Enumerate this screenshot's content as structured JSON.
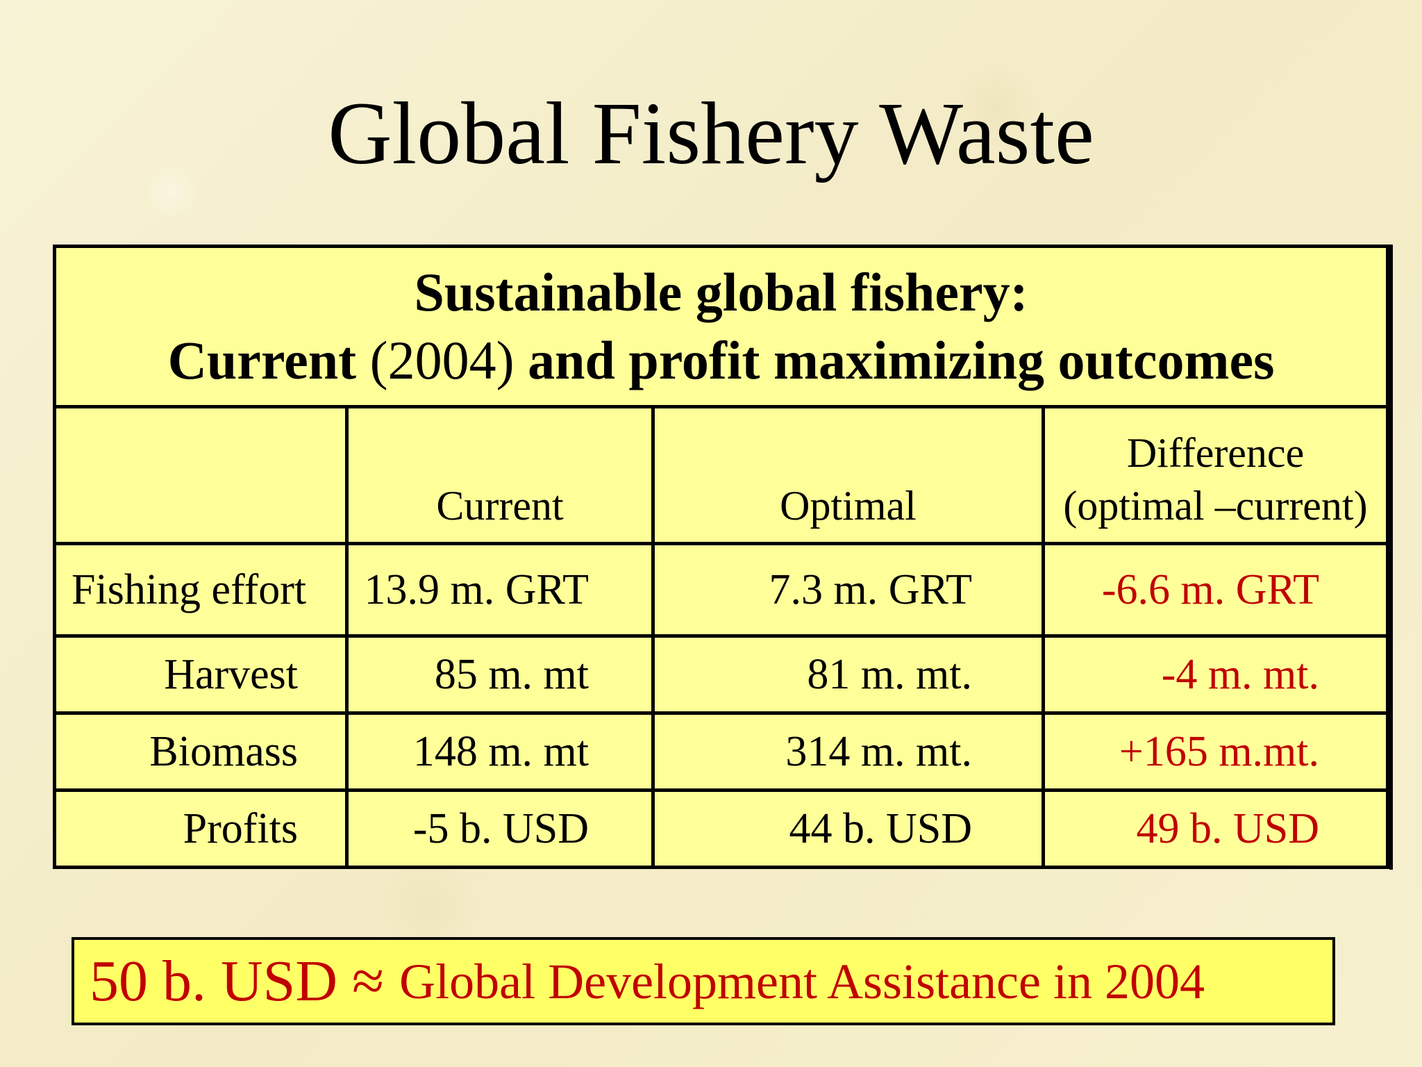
{
  "slide": {
    "title": "Global Fishery Waste"
  },
  "table": {
    "heading_line1": "Sustainable global fishery:",
    "heading_line2_a": "Current",
    "heading_line2_year": "(2004)",
    "heading_line2_b": "and profit maximizing outcomes",
    "columns": {
      "current": "Current",
      "optimal": "Optimal",
      "difference_line1": "Difference",
      "difference_line2": "(optimal –current)"
    },
    "rows": [
      {
        "label": "Fishing effort",
        "current": "13.9 m. GRT",
        "optimal": "7.3 m. GRT",
        "difference": "-6.6 m. GRT"
      },
      {
        "label": "Harvest",
        "current": "85 m. mt",
        "optimal": "81 m. mt.",
        "difference": "-4 m. mt."
      },
      {
        "label": "Biomass",
        "current": "148 m. mt",
        "optimal": "314 m. mt.",
        "difference": "+165 m.mt."
      },
      {
        "label": "Profits",
        "current": "-5 b. USD",
        "optimal": "44 b. USD",
        "difference": "49 b. USD"
      }
    ]
  },
  "callout": {
    "amount": "50 b. USD ≈",
    "text": "Global Development Assistance in 2004"
  },
  "colors": {
    "table_fill": "#ffff99",
    "callout_fill": "#ffff66",
    "highlight_text": "#c00000"
  }
}
